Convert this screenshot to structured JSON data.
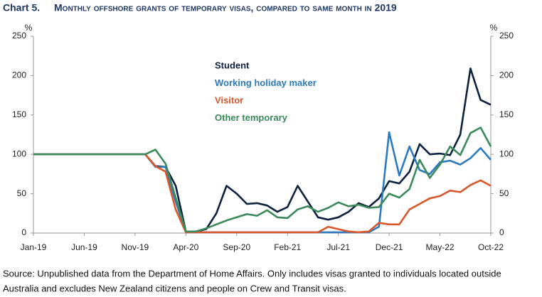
{
  "chart_data": {
    "type": "line",
    "chart_label": "Chart 5.",
    "title": "Monthly offshore grants of temporary visas, compared to same month in 2019",
    "y_unit": "%",
    "categories": [
      "Jan-19",
      null,
      null,
      null,
      null,
      "Jun-19",
      null,
      null,
      null,
      null,
      "Nov-19",
      null,
      null,
      null,
      null,
      "Apr-20",
      null,
      null,
      null,
      null,
      "Sep-20",
      null,
      null,
      null,
      null,
      "Feb-21",
      null,
      null,
      null,
      null,
      "Jul-21",
      null,
      null,
      null,
      null,
      "Dec-21",
      null,
      null,
      null,
      null,
      "May-22",
      null,
      null,
      null,
      null,
      "Oct-22"
    ],
    "series": [
      {
        "name": "Student",
        "color": "#0d2240",
        "values": [
          100,
          100,
          100,
          100,
          100,
          100,
          100,
          100,
          100,
          100,
          100,
          100,
          85,
          84,
          60,
          2,
          2,
          5,
          25,
          60,
          50,
          37,
          38,
          35,
          27,
          33,
          60,
          40,
          20,
          17,
          20,
          27,
          38,
          33,
          44,
          66,
          63,
          78,
          113,
          100,
          101,
          99,
          125,
          209,
          169,
          163
        ]
      },
      {
        "name": "Working holiday maker",
        "color": "#2e7ac0",
        "values": [
          100,
          100,
          100,
          100,
          100,
          100,
          100,
          100,
          100,
          100,
          100,
          100,
          84,
          84,
          40,
          1,
          1,
          1,
          1,
          1,
          1,
          1,
          1,
          1,
          1,
          1,
          1,
          1,
          1,
          1,
          1,
          1,
          1,
          1,
          8,
          128,
          73,
          110,
          80,
          75,
          90,
          92,
          87,
          95,
          108,
          93
        ]
      },
      {
        "name": "Visitor",
        "color": "#d9572b",
        "values": [
          100,
          100,
          100,
          100,
          100,
          100,
          100,
          100,
          100,
          100,
          100,
          100,
          85,
          78,
          30,
          1,
          1,
          1,
          1,
          1,
          1,
          1,
          1,
          1,
          1,
          1,
          1,
          1,
          1,
          8,
          5,
          2,
          1,
          2,
          13,
          11,
          11,
          30,
          37,
          44,
          47,
          54,
          52,
          61,
          67,
          60
        ]
      },
      {
        "name": "Other temporary",
        "color": "#3a8a5a",
        "values": [
          100,
          100,
          100,
          100,
          100,
          100,
          100,
          100,
          100,
          100,
          100,
          100,
          106,
          88,
          45,
          2,
          2,
          6,
          11,
          16,
          20,
          24,
          22,
          29,
          20,
          19,
          30,
          34,
          27,
          32,
          39,
          34,
          36,
          32,
          33,
          50,
          45,
          56,
          93,
          70,
          87,
          110,
          99,
          127,
          134,
          110
        ]
      }
    ],
    "ylim": [
      0,
      250
    ],
    "yticks": [
      0,
      50,
      100,
      150,
      200,
      250
    ],
    "note": [
      "Source: Unpublished data from the Department of Home Affairs. Only includes visas granted to individuals located outside",
      "Australia and excludes New Zealand citizens and people on Crew and Transit visas."
    ]
  }
}
